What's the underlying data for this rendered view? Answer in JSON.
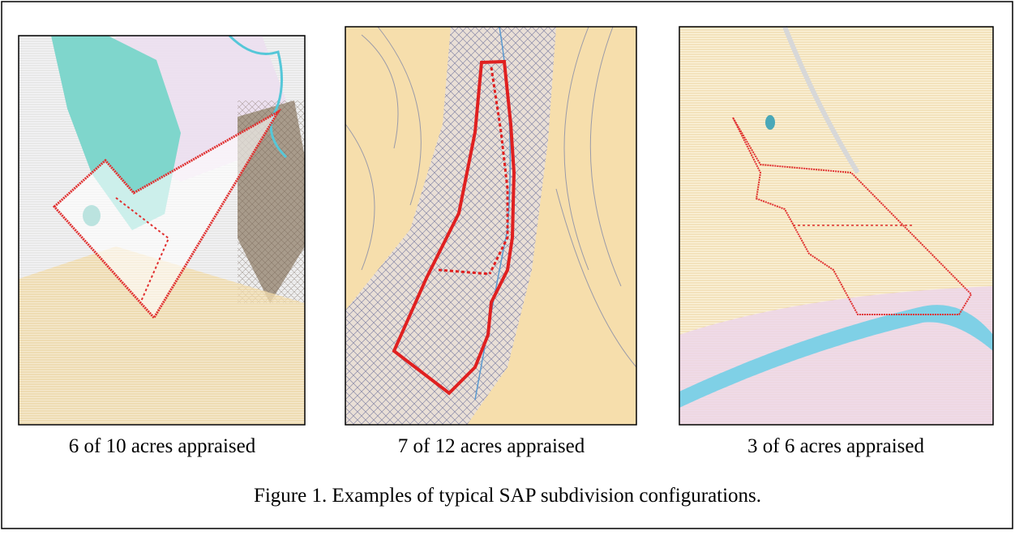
{
  "panels": [
    {
      "caption": "6 of 10 acres appraised"
    },
    {
      "caption": "7 of 12 acres appraised"
    },
    {
      "caption": "3 of 6 acres appraised"
    }
  ],
  "figure_caption": "Figure 1. Examples of typical SAP subdivision configurations."
}
